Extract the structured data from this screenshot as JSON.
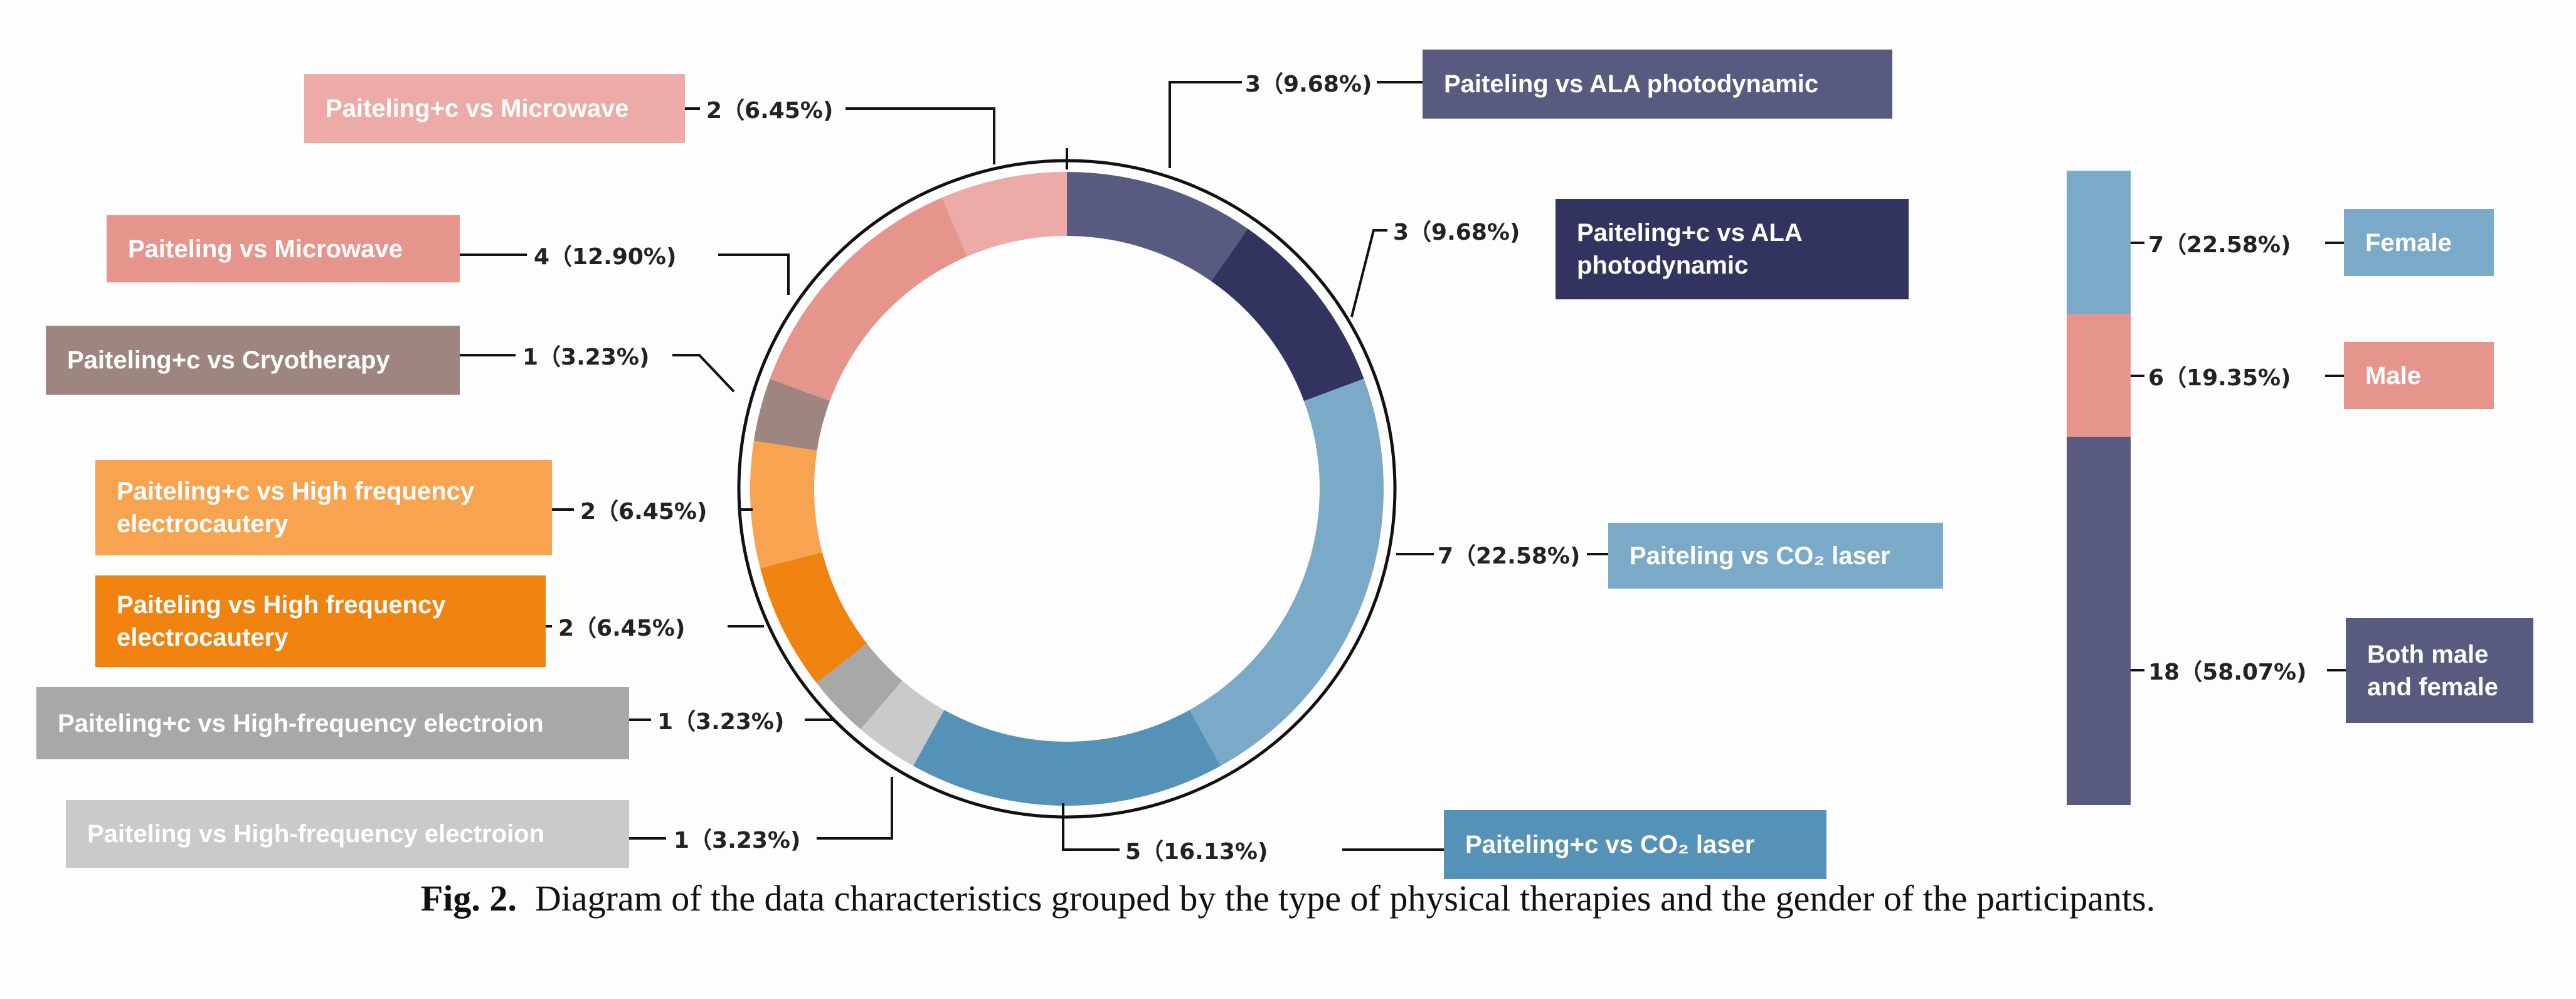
{
  "therapy_chart": {
    "type": "donut",
    "total": 31,
    "segments": [
      {
        "label": "Paiteling vs ALA photodynamic",
        "count": 3,
        "percent_text": "3（9.68%)",
        "color": "#585a80"
      },
      {
        "label": "Paiteling+c  vs ALA photodynamic",
        "count": 3,
        "percent_text": "3（9.68%)",
        "color": "#33335f"
      },
      {
        "label": "Paiteling vs CO₂ laser",
        "count": 7,
        "percent_text": "7（22.58%)",
        "color": "#7aaac8"
      },
      {
        "label": "Paiteling+c vs CO₂ laser",
        "count": 5,
        "percent_text": "5（16.13%)",
        "color": "#5592b8"
      },
      {
        "label": "Paiteling vs High-frequency electroion",
        "count": 1,
        "percent_text": "1（3.23%)",
        "color": "#cacacc"
      },
      {
        "label": "Paiteling+c vs High-frequency electroion",
        "count": 1,
        "percent_text": "1（3.23%)",
        "color": "#a8a8a8"
      },
      {
        "label": "Paiteling vs High frequency electrocautery",
        "count": 2,
        "percent_text": "2（6.45%)",
        "color": "#f0820f"
      },
      {
        "label": "Paiteling+c vs High frequency electrocautery",
        "count": 2,
        "percent_text": "2（6.45%)",
        "color": "#f8a350"
      },
      {
        "label": "Paiteling+c vs Cryotherapy",
        "count": 1,
        "percent_text": "1（3.23%)",
        "color": "#9e8580"
      },
      {
        "label": "Paiteling vs Microwave",
        "count": 4,
        "percent_text": "4（12.90%)",
        "color": "#e6958d"
      },
      {
        "label": "Paiteling+c vs Microwave",
        "count": 2,
        "percent_text": "2（6.45%)",
        "color": "#ecaba6"
      }
    ]
  },
  "gender_chart": {
    "type": "stacked-bar",
    "segments": [
      {
        "label": "Female",
        "count": 7,
        "percent_text": "7（22.58%)",
        "color": "#7aaac8"
      },
      {
        "label": "Male",
        "count": 6,
        "percent_text": "6（19.35%)",
        "color": "#e6958d"
      },
      {
        "label": "Both male and female",
        "count": 18,
        "percent_text": "18（58.07%)",
        "color": "#585a80"
      }
    ]
  },
  "caption": {
    "label": "Fig. 2.",
    "text": "Diagram of the data characteristics grouped by the type of physical therapies and the gender of the participants."
  }
}
